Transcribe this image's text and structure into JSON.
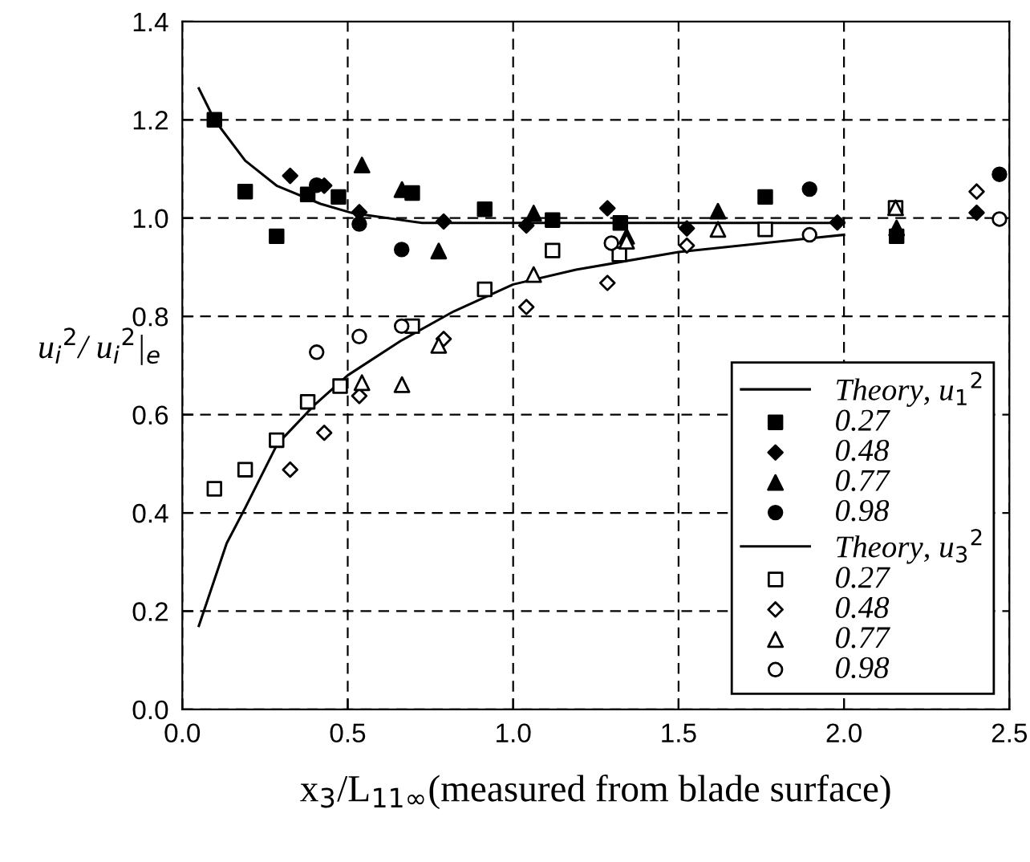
{
  "chart_data": {
    "type": "scatter",
    "xlabel": "x$_{3}$/L$_{11∞}$(measured from blade surface)",
    "ylabel": "u$_{i}$$^{2}$/ u$_{i}$$^{2}$|$_{e}$",
    "xlim": [
      0,
      2.5
    ],
    "xticks": [
      {
        "value": 0,
        "label": "0.0"
      },
      0.5,
      {
        "value": 1,
        "label": "1.0"
      },
      1.5,
      {
        "value": 2,
        "label": "2.0"
      },
      2.5
    ],
    "ylim": [
      0,
      1.4
    ],
    "yticks": [
      {
        "value": 0,
        "label": "0.0"
      },
      0.2,
      0.4,
      0.6,
      0.8,
      {
        "value": 1,
        "label": "1.0"
      },
      1.2,
      1.4
    ],
    "grid": true,
    "legend": "bottom right",
    "series": [
      {
        "type": "line",
        "name": "Theory, u$_{1}$$^{2}$",
        "color": "#000000",
        "marker": "none",
        "line_style": "solid",
        "x": [
          0.05,
          0.097,
          0.19,
          0.285,
          0.418,
          0.515,
          0.725,
          1.0,
          1.5,
          2.0
        ],
        "values": [
          1.264,
          1.2,
          1.117,
          1.066,
          1.029,
          1.01,
          0.99,
          0.99,
          0.99,
          0.99
        ]
      },
      {
        "name": "0.27",
        "color": "#000000",
        "marker": "square",
        "x": [
          0.097,
          0.19,
          0.285,
          0.379,
          0.472,
          0.695,
          0.914,
          1.119,
          1.324,
          1.762,
          2.159
        ],
        "values": [
          1.2,
          1.054,
          0.963,
          1.048,
          1.043,
          1.051,
          1.018,
          0.996,
          0.99,
          1.043,
          0.963
        ]
      },
      {
        "name": "0.48",
        "color": "#000000",
        "marker": "diamond",
        "x": [
          0.326,
          0.429,
          0.535,
          0.79,
          1.04,
          1.285,
          1.525,
          1.98,
          2.401
        ],
        "values": [
          1.086,
          1.066,
          1.012,
          0.993,
          0.985,
          1.02,
          0.979,
          0.991,
          1.011
        ]
      },
      {
        "name": "0.77",
        "color": "#000000",
        "marker": "triangle",
        "x": [
          0.543,
          0.664,
          0.775,
          1.062,
          1.343,
          1.619,
          2.159
        ],
        "values": [
          1.108,
          1.058,
          0.933,
          1.01,
          0.963,
          1.014,
          0.98
        ]
      },
      {
        "name": "0.98",
        "color": "#000000",
        "marker": "circle",
        "x": [
          0.406,
          0.535,
          0.663,
          1.896,
          2.47
        ],
        "values": [
          1.067,
          0.988,
          0.936,
          1.059,
          1.089
        ]
      },
      {
        "type": "line",
        "name": "Theory, u$_{3}$$^{2}$",
        "color": "#000000",
        "marker": "none",
        "line_style": "solid",
        "x": [
          0.05,
          0.134,
          0.19,
          0.287,
          0.4,
          0.5,
          0.66,
          0.82,
          1.0,
          1.19,
          1.5,
          2.0
        ],
        "values": [
          0.17,
          0.338,
          0.41,
          0.54,
          0.62,
          0.68,
          0.75,
          0.81,
          0.865,
          0.895,
          0.931,
          0.966
        ]
      },
      {
        "name": "0.27",
        "color": "#000000",
        "marker": "square",
        "colors": [
          "#ffffff",
          "#ffffff",
          "#ffffff",
          "#ffffff",
          "#ffffff",
          "#ffffff",
          "#ffffff",
          "#ffffff",
          "#ffffff",
          "#ffffff",
          "#ffffff"
        ],
        "x": [
          0.097,
          0.19,
          0.285,
          0.379,
          0.477,
          0.695,
          0.914,
          1.119,
          1.321,
          1.762,
          2.156
        ],
        "values": [
          0.449,
          0.488,
          0.548,
          0.626,
          0.658,
          0.78,
          0.855,
          0.934,
          0.926,
          0.977,
          1.021
        ]
      },
      {
        "name": "0.48",
        "color": "#000000",
        "marker": "diamond",
        "colors": [
          "#ffffff",
          "#ffffff",
          "#ffffff",
          "#ffffff",
          "#ffffff",
          "#ffffff",
          "#ffffff",
          "#ffffff"
        ],
        "x": [
          0.326,
          0.429,
          0.535,
          0.79,
          1.04,
          1.285,
          1.525,
          2.401
        ],
        "values": [
          0.488,
          0.563,
          0.638,
          0.754,
          0.819,
          0.868,
          0.944,
          1.054
        ]
      },
      {
        "name": "0.77",
        "color": "#000000",
        "marker": "triangle",
        "colors": [
          "#ffffff",
          "#ffffff",
          "#ffffff",
          "#ffffff",
          "#ffffff",
          "#ffffff",
          "#ffffff"
        ],
        "x": [
          0.543,
          0.664,
          0.775,
          1.062,
          1.343,
          1.619,
          2.156
        ],
        "values": [
          0.665,
          0.661,
          0.741,
          0.885,
          0.953,
          0.977,
          1.021
        ]
      },
      {
        "name": "0.98",
        "color": "#000000",
        "marker": "circle",
        "colors": [
          "#ffffff",
          "#ffffff",
          "#ffffff",
          "#ffffff",
          "#ffffff",
          "#ffffff"
        ],
        "x": [
          0.406,
          0.535,
          0.663,
          1.297,
          1.896,
          2.47
        ],
        "values": [
          0.727,
          0.759,
          0.78,
          0.949,
          0.966,
          0.998
        ]
      }
    ]
  }
}
